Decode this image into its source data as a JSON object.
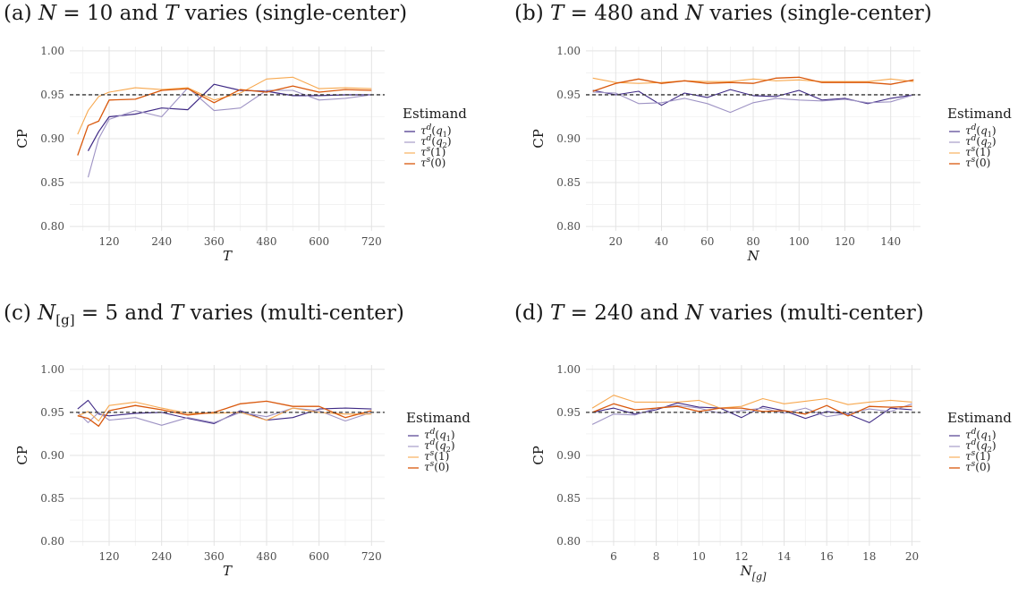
{
  "chart_data": [
    {
      "type": "line",
      "title": "(a) N = 10 and T varies (single-center)",
      "title_parts": {
        "prefix": "(a) ",
        "var1": "N",
        "mid": " = 10 and ",
        "var2": "T",
        "suffix": " varies (single-center)"
      },
      "xlabel": "T",
      "ylabel": "CP",
      "xlim": [
        30,
        750
      ],
      "ylim": [
        0.795,
        1.005
      ],
      "xticks": [
        120,
        240,
        360,
        480,
        600,
        720
      ],
      "yticks": [
        0.8,
        0.85,
        0.9,
        0.95,
        1.0
      ],
      "ytick_labels": [
        "0.80",
        "0.85",
        "0.90",
        "0.95",
        "1.00"
      ],
      "reference_line": 0.95,
      "legend_title": "Estimand",
      "x": [
        48,
        72,
        96,
        120,
        180,
        240,
        300,
        360,
        420,
        480,
        540,
        600,
        660,
        720
      ],
      "series": [
        {
          "name": "τd(q1)",
          "color": "#3f2a85",
          "opacity": 1.0,
          "width": 1.2,
          "values": [
            null,
            0.886,
            0.908,
            0.925,
            0.928,
            0.935,
            0.933,
            0.962,
            0.955,
            0.954,
            0.949,
            0.949,
            0.95,
            0.95
          ]
        },
        {
          "name": "τd(q2)",
          "color": "#9e93c4",
          "opacity": 1.0,
          "width": 1.1,
          "values": [
            null,
            0.856,
            0.9,
            0.922,
            0.932,
            0.925,
            0.958,
            0.932,
            0.935,
            0.955,
            0.955,
            0.944,
            0.946,
            0.95
          ]
        },
        {
          "name": "τs(1)",
          "color": "#f7a84f",
          "opacity": 1.0,
          "width": 1.1,
          "values": [
            0.905,
            0.932,
            0.948,
            0.953,
            0.958,
            0.956,
            0.958,
            0.944,
            0.952,
            0.968,
            0.97,
            0.957,
            0.958,
            0.957
          ]
        },
        {
          "name": "τs(0)",
          "color": "#d9580c",
          "opacity": 1.0,
          "width": 1.3,
          "values": [
            0.881,
            0.915,
            0.92,
            0.944,
            0.945,
            0.955,
            0.957,
            0.941,
            0.956,
            0.953,
            0.96,
            0.953,
            0.956,
            0.955
          ]
        }
      ]
    },
    {
      "type": "line",
      "title": "(b) T = 480 and N varies (single-center)",
      "title_parts": {
        "prefix": "(b) ",
        "var1": "T",
        "mid": " = 480 and ",
        "var2": "N",
        "suffix": " varies (single-center)"
      },
      "xlabel": "N",
      "ylabel": "CP",
      "xlim": [
        7,
        153
      ],
      "ylim": [
        0.795,
        1.005
      ],
      "xticks": [
        20,
        40,
        60,
        80,
        100,
        120,
        140
      ],
      "yticks": [
        0.8,
        0.85,
        0.9,
        0.95,
        1.0
      ],
      "ytick_labels": [
        "0.80",
        "0.85",
        "0.90",
        "0.95",
        "1.00"
      ],
      "reference_line": 0.95,
      "legend_title": "Estimand",
      "x": [
        10,
        20,
        30,
        40,
        50,
        60,
        70,
        80,
        90,
        100,
        110,
        120,
        130,
        140,
        150
      ],
      "series": [
        {
          "name": "τd(q1)",
          "color": "#3f2a85",
          "opacity": 1.0,
          "width": 1.1,
          "values": [
            0.955,
            0.95,
            0.954,
            0.938,
            0.952,
            0.947,
            0.956,
            0.949,
            0.948,
            0.955,
            0.944,
            0.946,
            0.94,
            0.946,
            0.95
          ]
        },
        {
          "name": "τd(q2)",
          "color": "#9e93c4",
          "opacity": 1.0,
          "width": 1.1,
          "values": [
            0.953,
            0.952,
            0.94,
            0.941,
            0.946,
            0.94,
            0.93,
            0.941,
            0.946,
            0.944,
            0.943,
            0.945,
            0.941,
            0.942,
            0.95
          ]
        },
        {
          "name": "τs(1)",
          "color": "#f7a84f",
          "opacity": 1.0,
          "width": 1.1,
          "values": [
            0.969,
            0.964,
            0.963,
            0.964,
            0.966,
            0.965,
            0.965,
            0.968,
            0.966,
            0.967,
            0.965,
            0.965,
            0.965,
            0.968,
            0.965
          ]
        },
        {
          "name": "τs(0)",
          "color": "#d9580c",
          "opacity": 1.0,
          "width": 1.3,
          "values": [
            0.954,
            0.963,
            0.968,
            0.963,
            0.966,
            0.963,
            0.964,
            0.963,
            0.969,
            0.97,
            0.964,
            0.964,
            0.964,
            0.962,
            0.967
          ]
        }
      ]
    },
    {
      "type": "line",
      "title": "(c) N[g] = 5 and T varies (multi-center)",
      "title_parts": {
        "prefix": "(c) ",
        "var1": "N",
        "sub1": "[g]",
        "mid": " = 5 and ",
        "var2": "T",
        "suffix": " varies (multi-center)"
      },
      "xlabel": "T",
      "ylabel": "CP",
      "xlim": [
        30,
        750
      ],
      "ylim": [
        0.795,
        1.005
      ],
      "xticks": [
        120,
        240,
        360,
        480,
        600,
        720
      ],
      "yticks": [
        0.8,
        0.85,
        0.9,
        0.95,
        1.0
      ],
      "ytick_labels": [
        "0.80",
        "0.85",
        "0.90",
        "0.95",
        "1.00"
      ],
      "reference_line": 0.95,
      "legend_title": "Estimand",
      "x": [
        48,
        72,
        96,
        120,
        180,
        240,
        300,
        360,
        420,
        480,
        540,
        600,
        660,
        720
      ],
      "series": [
        {
          "name": "τd(q1)",
          "color": "#3f2a85",
          "opacity": 1.0,
          "width": 1.1,
          "values": [
            0.954,
            0.964,
            0.948,
            0.946,
            0.949,
            0.95,
            0.943,
            0.937,
            0.952,
            0.941,
            0.944,
            0.954,
            0.955,
            0.954
          ]
        },
        {
          "name": "τd(q2)",
          "color": "#9e93c4",
          "opacity": 1.0,
          "width": 1.1,
          "values": [
            0.95,
            0.938,
            0.95,
            0.941,
            0.944,
            0.935,
            0.944,
            0.938,
            0.95,
            0.945,
            0.955,
            0.952,
            0.94,
            0.95
          ]
        },
        {
          "name": "τs(1)",
          "color": "#f7a84f",
          "opacity": 1.0,
          "width": 1.1,
          "values": [
            0.946,
            0.951,
            0.94,
            0.958,
            0.962,
            0.955,
            0.949,
            0.949,
            0.95,
            0.941,
            0.955,
            0.95,
            0.948,
            0.948
          ]
        },
        {
          "name": "τs(0)",
          "color": "#d9580c",
          "opacity": 1.0,
          "width": 1.3,
          "values": [
            0.946,
            0.943,
            0.934,
            0.952,
            0.958,
            0.953,
            0.947,
            0.95,
            0.96,
            0.963,
            0.957,
            0.957,
            0.944,
            0.952
          ]
        }
      ]
    },
    {
      "type": "line",
      "title": "(d) T = 240 and N varies (multi-center)",
      "title_parts": {
        "prefix": "(d) ",
        "var1": "T",
        "mid": " = 240 and ",
        "var2": "N",
        "suffix": " varies (multi-center)"
      },
      "xlabel": "N[g]",
      "ylabel": "CP",
      "xlim": [
        4.7,
        20.4
      ],
      "ylim": [
        0.795,
        1.005
      ],
      "xticks": [
        6,
        8,
        10,
        12,
        14,
        16,
        18,
        20
      ],
      "yticks": [
        0.8,
        0.85,
        0.9,
        0.95,
        1.0
      ],
      "ytick_labels": [
        "0.80",
        "0.85",
        "0.90",
        "0.95",
        "1.00"
      ],
      "reference_line": 0.95,
      "legend_title": "Estimand",
      "x": [
        5,
        6,
        7,
        8,
        9,
        10,
        11,
        12,
        13,
        14,
        15,
        16,
        17,
        18,
        19,
        20
      ],
      "series": [
        {
          "name": "τd(q1)",
          "color": "#3f2a85",
          "opacity": 1.0,
          "width": 1.1,
          "values": [
            0.95,
            0.955,
            0.948,
            0.953,
            0.961,
            0.956,
            0.955,
            0.944,
            0.957,
            0.952,
            0.943,
            0.951,
            0.948,
            0.938,
            0.955,
            0.953
          ]
        },
        {
          "name": "τd(q2)",
          "color": "#9e93c4",
          "opacity": 1.0,
          "width": 1.1,
          "values": [
            0.936,
            0.948,
            0.947,
            0.955,
            0.958,
            0.955,
            0.949,
            0.952,
            0.955,
            0.949,
            0.955,
            0.945,
            0.949,
            0.954,
            0.951,
            0.96
          ]
        },
        {
          "name": "τs(1)",
          "color": "#f7a84f",
          "opacity": 1.0,
          "width": 1.1,
          "values": [
            0.955,
            0.97,
            0.962,
            0.962,
            0.962,
            0.964,
            0.955,
            0.957,
            0.966,
            0.96,
            0.963,
            0.966,
            0.959,
            0.962,
            0.964,
            0.962
          ]
        },
        {
          "name": "τs(0)",
          "color": "#d9580c",
          "opacity": 1.0,
          "width": 1.3,
          "values": [
            0.95,
            0.96,
            0.953,
            0.955,
            0.957,
            0.951,
            0.955,
            0.955,
            0.951,
            0.952,
            0.948,
            0.958,
            0.946,
            0.957,
            0.956,
            0.957
          ]
        }
      ]
    }
  ]
}
